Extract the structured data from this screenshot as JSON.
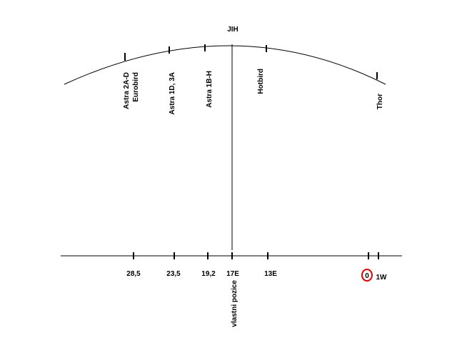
{
  "title": "JIH",
  "satellites": [
    {
      "lines": [
        "Astra 2A-D",
        "Eurobird"
      ]
    },
    {
      "lines": [
        "Astra 1D, 3A"
      ]
    },
    {
      "lines": [
        "Astra 1B-H"
      ]
    },
    {
      "lines": [
        "Hotbird"
      ]
    },
    {
      "lines": [
        "Thor"
      ]
    }
  ],
  "axis_labels": [
    "28,5",
    "23,5",
    "19,2",
    "17E",
    "13E",
    "0",
    "1W"
  ],
  "own_position": "vlastni pozice"
}
